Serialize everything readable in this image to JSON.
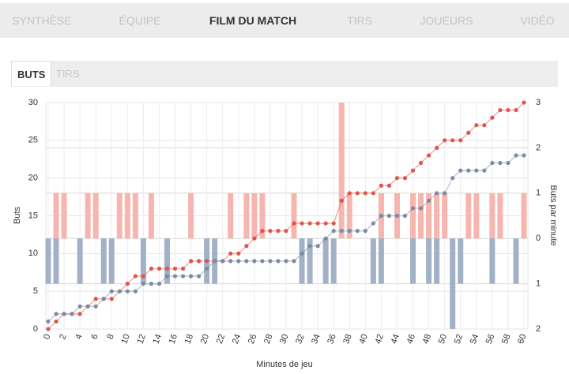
{
  "nav": {
    "tabs": [
      "SYNTHÈSE",
      "ÉQUIPE",
      "FILM DU MATCH",
      "TIRS",
      "JOUEURS",
      "VIDÉO"
    ]
  },
  "subtabs": [
    "BUTS",
    "TIRS"
  ],
  "chart_data": {
    "type": "combo",
    "y_label": "Buts",
    "y2_label": "Buts par minute",
    "x_label": "Minutes de jeu",
    "x": [
      0,
      1,
      2,
      3,
      4,
      5,
      6,
      7,
      8,
      9,
      10,
      11,
      12,
      13,
      14,
      15,
      16,
      17,
      18,
      19,
      20,
      21,
      22,
      23,
      24,
      25,
      26,
      27,
      28,
      29,
      30,
      31,
      32,
      33,
      34,
      35,
      36,
      37,
      38,
      39,
      40,
      41,
      42,
      43,
      44,
      45,
      46,
      47,
      48,
      49,
      50,
      51,
      52,
      53,
      54,
      55,
      56,
      57,
      58,
      59,
      60
    ],
    "xlim": [
      0,
      60
    ],
    "xticks": [
      0,
      2,
      4,
      6,
      8,
      10,
      12,
      14,
      16,
      18,
      20,
      22,
      24,
      26,
      28,
      30,
      32,
      34,
      36,
      38,
      40,
      42,
      44,
      46,
      48,
      50,
      52,
      54,
      56,
      58,
      60
    ],
    "ylim": [
      0,
      30
    ],
    "yticks": [
      0,
      5,
      10,
      15,
      20,
      25,
      30
    ],
    "y2lim": [
      -2,
      3
    ],
    "y2ticks": [
      {
        "value": -2,
        "label": "2"
      },
      {
        "value": -1,
        "label": "1"
      },
      0,
      1,
      2,
      3
    ],
    "grid": true,
    "series": [
      {
        "type": "bar",
        "axis": "y2",
        "color": "#f6b5af",
        "values": [
          0,
          1,
          1,
          0,
          0,
          1,
          1,
          0,
          0,
          1,
          1,
          1,
          0,
          1,
          0,
          0,
          0,
          0,
          1,
          0,
          0,
          0,
          0,
          1,
          0,
          1,
          1,
          1,
          0,
          0,
          0,
          1,
          0,
          0,
          0,
          0,
          0,
          3,
          1,
          0,
          0,
          0,
          1,
          0,
          1,
          0,
          1,
          1,
          1,
          1,
          1,
          0,
          0,
          1,
          1,
          0,
          1,
          1,
          0,
          0,
          1
        ]
      },
      {
        "type": "bar",
        "axis": "y2",
        "color": "#a2b1c7",
        "values": [
          -1,
          -1,
          0,
          0,
          -1,
          0,
          0,
          -1,
          -1,
          0,
          0,
          0,
          -1,
          0,
          0,
          -1,
          0,
          0,
          0,
          0,
          -1,
          -1,
          0,
          0,
          0,
          0,
          0,
          0,
          0,
          0,
          0,
          0,
          -1,
          -1,
          0,
          -1,
          -1,
          0,
          0,
          0,
          0,
          -1,
          -1,
          0,
          0,
          0,
          -1,
          0,
          -1,
          -1,
          0,
          -2,
          -1,
          0,
          0,
          0,
          -1,
          0,
          0,
          -1,
          0
        ]
      },
      {
        "type": "line",
        "color": "#e0554a",
        "values": [
          0,
          1,
          2,
          2,
          2,
          3,
          4,
          4,
          4,
          5,
          6,
          7,
          7,
          8,
          8,
          8,
          8,
          8,
          9,
          9,
          9,
          9,
          9,
          10,
          10,
          11,
          12,
          13,
          13,
          13,
          13,
          14,
          14,
          14,
          14,
          14,
          14,
          17,
          18,
          18,
          18,
          18,
          19,
          19,
          20,
          20,
          21,
          22,
          23,
          24,
          25,
          25,
          25,
          26,
          27,
          27,
          28,
          29,
          29,
          29,
          30
        ]
      },
      {
        "type": "line",
        "color": "#7b8aa5",
        "values": [
          1,
          2,
          2,
          2,
          3,
          3,
          3,
          4,
          5,
          5,
          5,
          5,
          6,
          6,
          6,
          7,
          7,
          7,
          7,
          7,
          8,
          9,
          9,
          9,
          9,
          9,
          9,
          9,
          9,
          9,
          9,
          9,
          10,
          11,
          11,
          12,
          13,
          13,
          13,
          13,
          13,
          14,
          15,
          15,
          15,
          15,
          16,
          16,
          17,
          18,
          18,
          20,
          21,
          21,
          21,
          21,
          22,
          22,
          22,
          23,
          23
        ]
      }
    ]
  }
}
